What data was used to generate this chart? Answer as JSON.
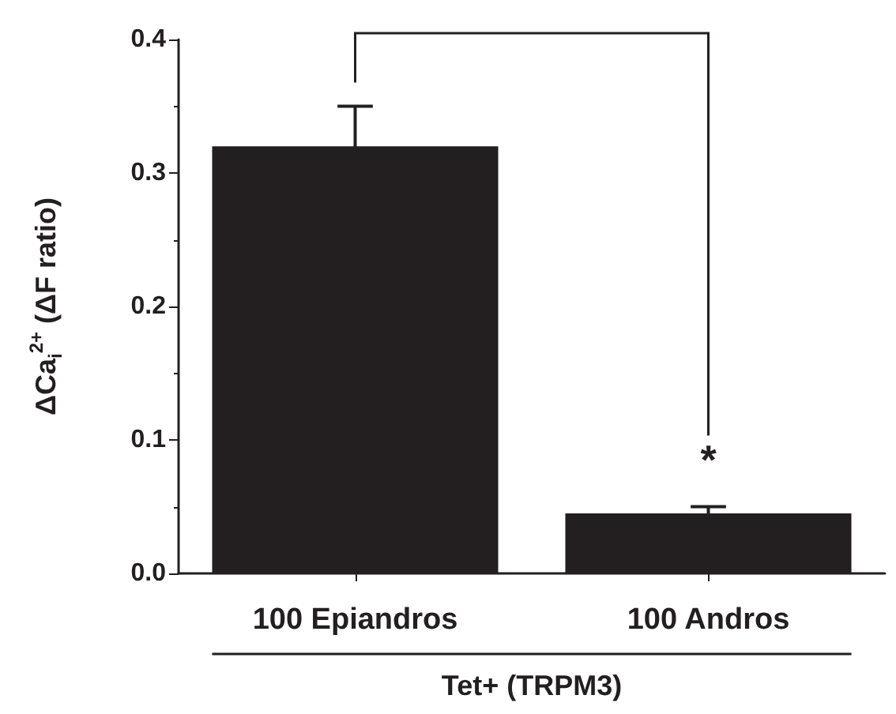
{
  "chart_data": {
    "type": "bar",
    "ylabel": "ΔCa$_{i}$$^{2+}$ (ΔF ratio)",
    "xlabel": "Tet+ (TRPM3)",
    "categories": [
      "100 Epiandros",
      "100 Andros"
    ],
    "values": [
      0.32,
      0.045
    ],
    "errors": [
      0.03,
      0.005
    ],
    "color": "#231f20",
    "ylim": [
      0,
      0.4
    ],
    "yticks": [
      {
        "value": 0,
        "label": "0.0"
      },
      0.1,
      0.2,
      0.3,
      0.4
    ],
    "grid": false,
    "annotations": [
      "*"
    ]
  }
}
